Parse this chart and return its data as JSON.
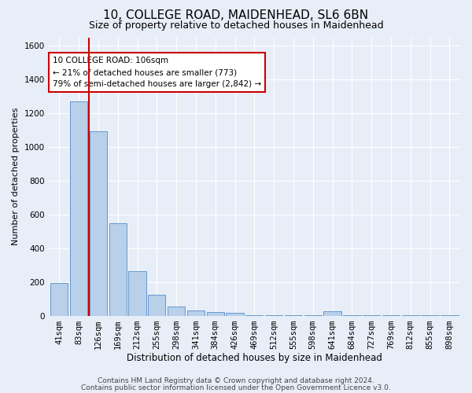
{
  "title1": "10, COLLEGE ROAD, MAIDENHEAD, SL6 6BN",
  "title2": "Size of property relative to detached houses in Maidenhead",
  "xlabel": "Distribution of detached houses by size in Maidenhead",
  "ylabel": "Number of detached properties",
  "categories": [
    "41sqm",
    "83sqm",
    "126sqm",
    "169sqm",
    "212sqm",
    "255sqm",
    "298sqm",
    "341sqm",
    "384sqm",
    "426sqm",
    "469sqm",
    "512sqm",
    "555sqm",
    "598sqm",
    "641sqm",
    "684sqm",
    "727sqm",
    "769sqm",
    "812sqm",
    "855sqm",
    "898sqm"
  ],
  "values": [
    192,
    1268,
    1092,
    550,
    262,
    122,
    55,
    30,
    20,
    15,
    5,
    3,
    3,
    3,
    25,
    3,
    3,
    3,
    3,
    3,
    3
  ],
  "bar_color": "#b8d0ea",
  "bar_edge_color": "#6699cc",
  "vline_color": "#cc0000",
  "annotation_text": "10 COLLEGE ROAD: 106sqm\n← 21% of detached houses are smaller (773)\n79% of semi-detached houses are larger (2,842) →",
  "annotation_box_color": "#ffffff",
  "annotation_box_edge_color": "#cc0000",
  "ylim": [
    0,
    1650
  ],
  "yticks": [
    0,
    200,
    400,
    600,
    800,
    1000,
    1200,
    1400,
    1600
  ],
  "footer1": "Contains HM Land Registry data © Crown copyright and database right 2024.",
  "footer2": "Contains public sector information licensed under the Open Government Licence v3.0.",
  "bg_color": "#e8eef8",
  "plot_bg_color": "#e8eef8",
  "title1_fontsize": 11,
  "title2_fontsize": 9,
  "xlabel_fontsize": 8.5,
  "ylabel_fontsize": 8,
  "tick_fontsize": 7.5,
  "footer_fontsize": 6.5,
  "vline_x_bar": 1.5
}
